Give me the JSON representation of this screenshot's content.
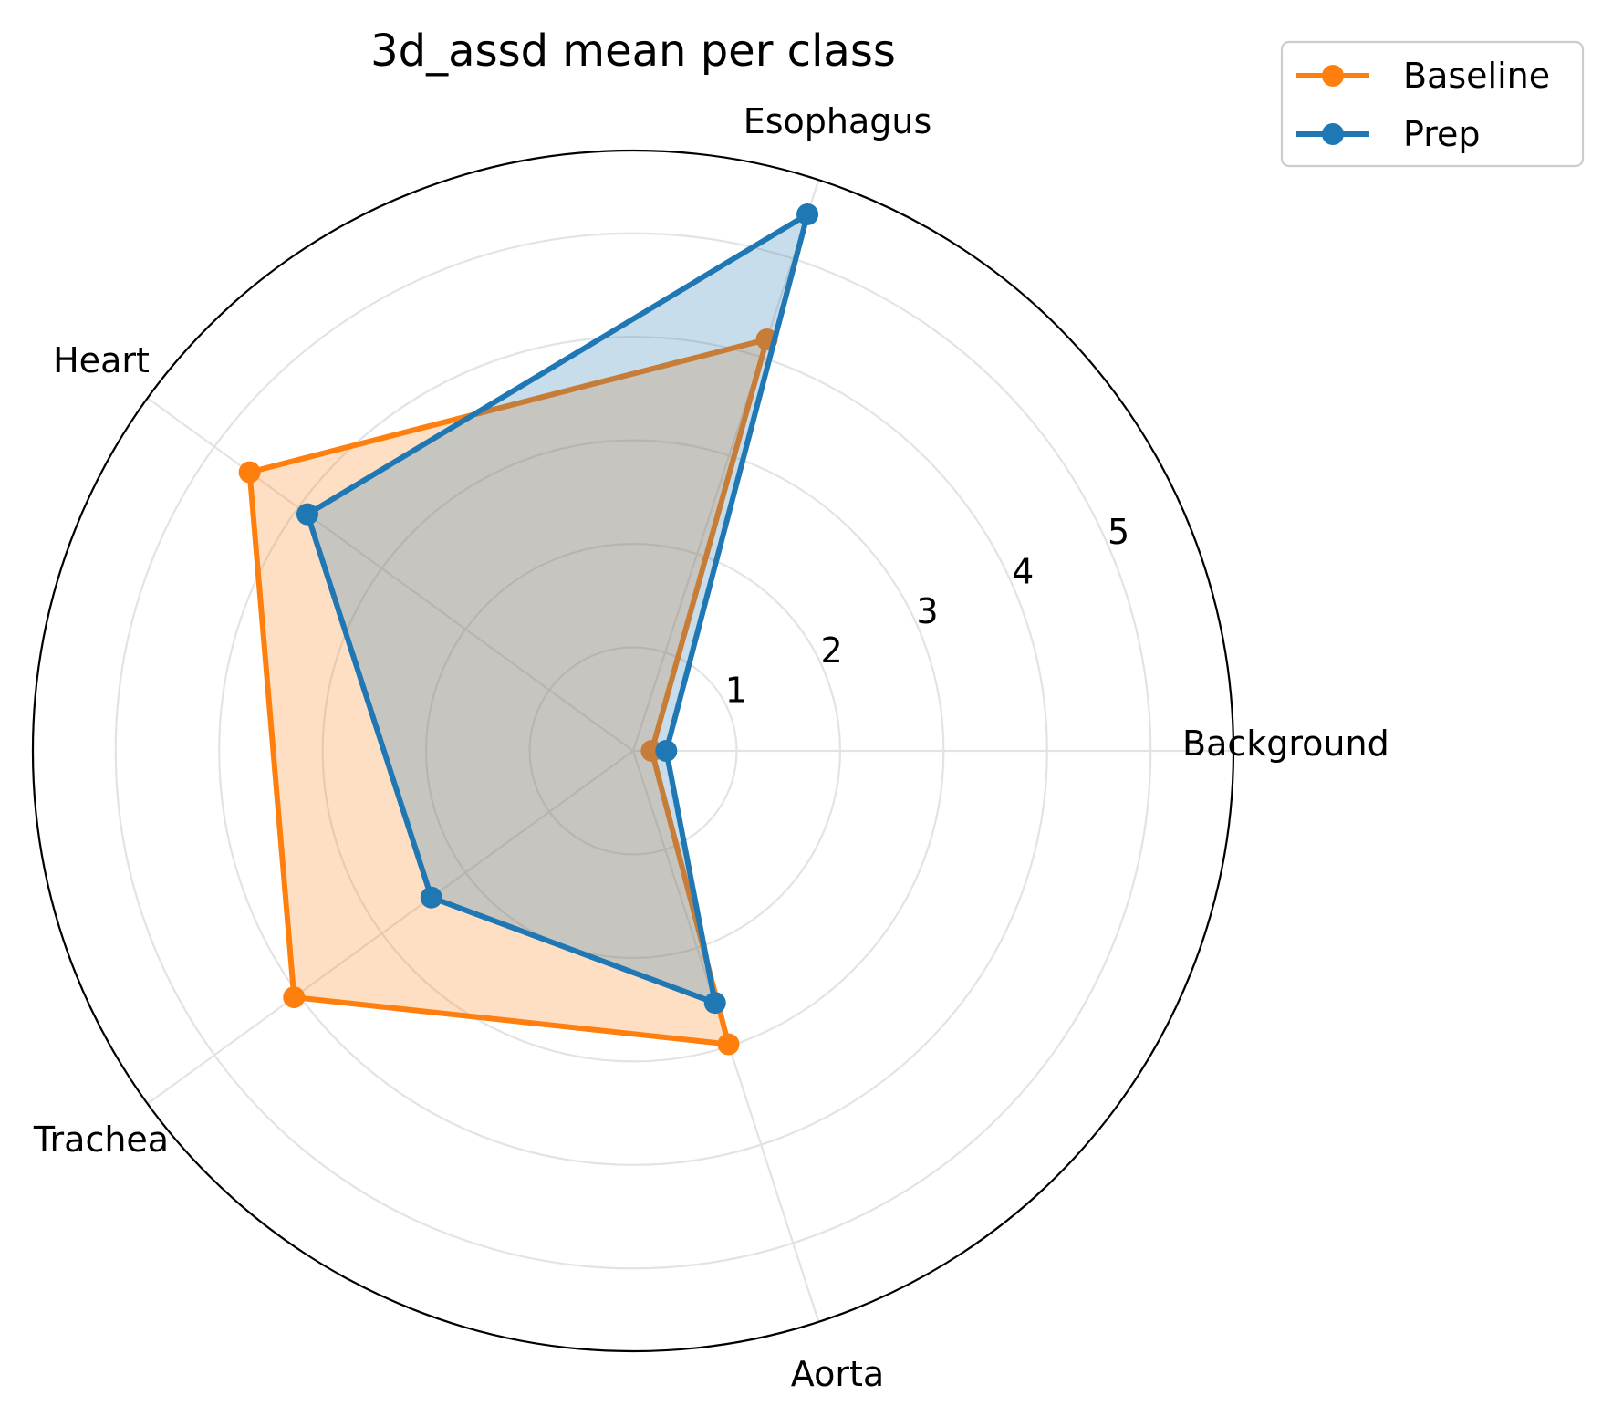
{
  "chart_data": {
    "type": "radar",
    "title": "3d_assd mean per class",
    "categories": [
      "Background",
      "Esophagus",
      "Heart",
      "Trachea",
      "Aorta"
    ],
    "series": [
      {
        "name": "Baseline",
        "color": "#ff7f0e",
        "values": [
          0.18,
          4.18,
          4.58,
          4.05,
          2.98
        ]
      },
      {
        "name": "Prep",
        "color": "#1f77b4",
        "values": [
          0.32,
          5.45,
          3.89,
          2.41,
          2.56
        ]
      }
    ],
    "radial_ticks": [
      "1",
      "2",
      "3",
      "4",
      "5"
    ],
    "radial_tick_values": [
      1,
      2,
      3,
      4,
      5
    ],
    "rlim": [
      0,
      5.8
    ],
    "grid": true,
    "legend_position": "top-right"
  }
}
